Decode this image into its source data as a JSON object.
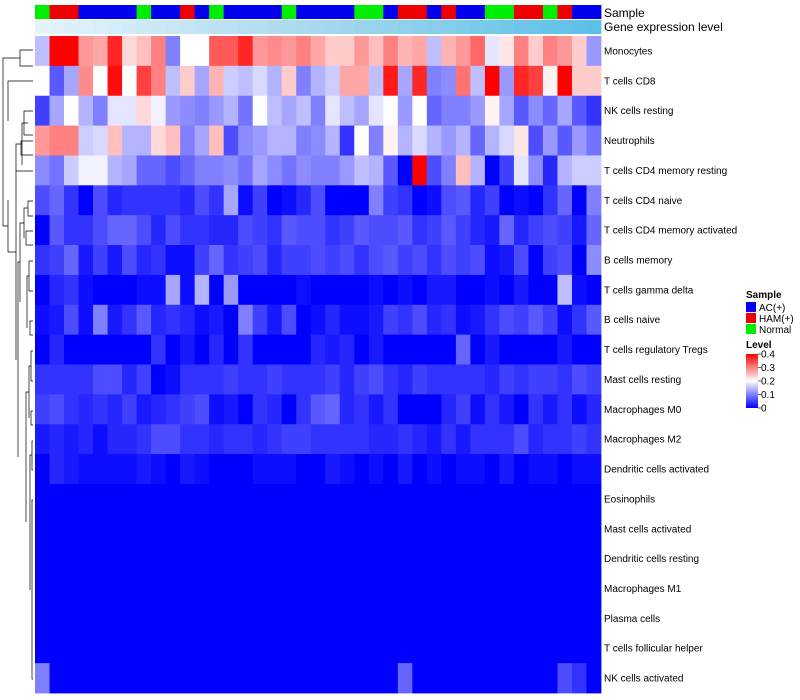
{
  "chart_data": {
    "type": "heatmap",
    "annotation_rows": [
      "Sample",
      "Gene expression level"
    ],
    "rows": [
      "Monocytes",
      "T cells CD8",
      "NK cells resting",
      "Neutrophils",
      "T cells CD4 memory resting",
      "T cells CD4 naive",
      "T cells CD4 memory activated",
      "B cells memory",
      "T cells gamma delta",
      "B cells naive",
      "T cells regulatory  Tregs",
      "Mast cells resting",
      "Macrophages M0",
      "Macrophages M2",
      "Dendritic cells activated",
      "Eosinophils",
      "Mast cells activated",
      "Dendritic cells resting",
      "Macrophages M1",
      "Plasma cells",
      "T cells follicular helper",
      "NK cells activated"
    ],
    "sample_groups": [
      "Normal",
      "HAM(+)",
      "HAM(+)",
      "AC(+)",
      "AC(+)",
      "AC(+)",
      "AC(+)",
      "Normal",
      "AC(+)",
      "AC(+)",
      "HAM(+)",
      "AC(+)",
      "Normal",
      "AC(+)",
      "AC(+)",
      "AC(+)",
      "AC(+)",
      "Normal",
      "AC(+)",
      "AC(+)",
      "AC(+)",
      "AC(+)",
      "Normal",
      "Normal",
      "AC(+)",
      "HAM(+)",
      "HAM(+)",
      "AC(+)",
      "HAM(+)",
      "AC(+)",
      "AC(+)",
      "Normal",
      "Normal",
      "HAM(+)",
      "HAM(+)",
      "Normal",
      "HAM(+)",
      "AC(+)",
      "AC(+)"
    ],
    "values": [
      [
        0.15,
        0.4,
        0.4,
        0.28,
        0.27,
        0.37,
        0.23,
        0.25,
        0.3,
        0.1,
        0.2,
        0.2,
        0.33,
        0.33,
        0.37,
        0.28,
        0.29,
        0.28,
        0.3,
        0.27,
        0.24,
        0.24,
        0.28,
        0.25,
        0.3,
        0.26,
        0.27,
        0.15,
        0.26,
        0.28,
        0.32,
        0.18,
        0.22,
        0.3,
        0.24,
        0.3,
        0.28,
        0.24,
        0.12
      ],
      [
        0.2,
        0.07,
        0.13,
        0.29,
        0.2,
        0.39,
        0.2,
        0.35,
        0.3,
        0.15,
        0.24,
        0.13,
        0.26,
        0.16,
        0.15,
        0.17,
        0.14,
        0.24,
        0.1,
        0.14,
        0.16,
        0.27,
        0.27,
        0.15,
        0.38,
        0.13,
        0.37,
        0.1,
        0.11,
        0.31,
        0.15,
        0.4,
        0.12,
        0.37,
        0.35,
        0.21,
        0.4,
        0.24,
        0.24
      ],
      [
        0.05,
        0.13,
        0.2,
        0.14,
        0.1,
        0.18,
        0.18,
        0.23,
        0.19,
        0.12,
        0.11,
        0.1,
        0.12,
        0.14,
        0.09,
        0.2,
        0.15,
        0.13,
        0.15,
        0.1,
        0.18,
        0.15,
        0.13,
        0.18,
        0.2,
        0.12,
        0.2,
        0.08,
        0.1,
        0.1,
        0.12,
        0.21,
        0.13,
        0.07,
        0.11,
        0.08,
        0.13,
        0.07,
        0.04
      ],
      [
        0.28,
        0.3,
        0.3,
        0.16,
        0.17,
        0.25,
        0.14,
        0.14,
        0.23,
        0.25,
        0.1,
        0.13,
        0.25,
        0.06,
        0.11,
        0.12,
        0.14,
        0.14,
        0.1,
        0.11,
        0.14,
        0.04,
        0.2,
        0.1,
        0.21,
        0.14,
        0.17,
        0.14,
        0.12,
        0.14,
        0.08,
        0.14,
        0.17,
        0.22,
        0.06,
        0.12,
        0.07,
        0.12,
        0.09
      ],
      [
        0.11,
        0.09,
        0.16,
        0.19,
        0.19,
        0.14,
        0.13,
        0.08,
        0.08,
        0.06,
        0.08,
        0.1,
        0.1,
        0.11,
        0.09,
        0.13,
        0.11,
        0.09,
        0.11,
        0.1,
        0.1,
        0.12,
        0.15,
        0.14,
        0.07,
        0.0,
        0.4,
        0.06,
        0.1,
        0.25,
        0.14,
        0.0,
        0.05,
        0.18,
        0.11,
        0.03,
        0.14,
        0.16,
        0.16
      ],
      [
        0.06,
        0.08,
        0.04,
        0.0,
        0.06,
        0.03,
        0.04,
        0.04,
        0.04,
        0.04,
        0.03,
        0.06,
        0.04,
        0.13,
        0.01,
        0.05,
        0.0,
        0.01,
        0.03,
        0.06,
        0.0,
        0.0,
        0.0,
        0.1,
        0.05,
        0.04,
        0.0,
        0.01,
        0.06,
        0.07,
        0.03,
        0.05,
        0.0,
        0.01,
        0.0,
        0.04,
        0.08,
        0.0,
        0.1
      ],
      [
        0.0,
        0.07,
        0.04,
        0.04,
        0.06,
        0.08,
        0.08,
        0.06,
        0.03,
        0.06,
        0.04,
        0.04,
        0.03,
        0.03,
        0.06,
        0.05,
        0.04,
        0.07,
        0.06,
        0.06,
        0.04,
        0.05,
        0.07,
        0.06,
        0.06,
        0.07,
        0.04,
        0.05,
        0.07,
        0.05,
        0.03,
        0.02,
        0.08,
        0.03,
        0.05,
        0.06,
        0.05,
        0.02,
        0.08
      ],
      [
        0.04,
        0.05,
        0.08,
        0.02,
        0.05,
        0.02,
        0.06,
        0.03,
        0.04,
        0.01,
        0.01,
        0.05,
        0.08,
        0.04,
        0.05,
        0.06,
        0.03,
        0.05,
        0.05,
        0.06,
        0.05,
        0.06,
        0.04,
        0.06,
        0.07,
        0.05,
        0.06,
        0.04,
        0.06,
        0.05,
        0.06,
        0.01,
        0.02,
        0.06,
        0.0,
        0.05,
        0.06,
        0.0,
        0.11
      ],
      [
        0.0,
        0.03,
        0.04,
        0.01,
        0.0,
        0.0,
        0.0,
        0.01,
        0.01,
        0.13,
        0.01,
        0.14,
        0.0,
        0.12,
        0.0,
        0.0,
        0.0,
        0.0,
        0.01,
        0.0,
        0.0,
        0.0,
        0.0,
        0.01,
        0.0,
        0.01,
        0.0,
        0.02,
        0.02,
        0.0,
        0.0,
        0.01,
        0.0,
        0.02,
        0.0,
        0.0,
        0.15,
        0.01,
        0.0
      ],
      [
        0.01,
        0.02,
        0.06,
        0.01,
        0.1,
        0.02,
        0.04,
        0.07,
        0.03,
        0.04,
        0.03,
        0.01,
        0.02,
        0.0,
        0.1,
        0.05,
        0.02,
        0.06,
        0.0,
        0.01,
        0.03,
        0.01,
        0.01,
        0.02,
        0.05,
        0.04,
        0.06,
        0.03,
        0.04,
        0.01,
        0.02,
        0.04,
        0.06,
        0.05,
        0.07,
        0.05,
        0.01,
        0.04,
        0.07
      ],
      [
        0.0,
        0.03,
        0.0,
        0.0,
        0.0,
        0.0,
        0.0,
        0.0,
        0.04,
        0.0,
        0.02,
        0.0,
        0.03,
        0.0,
        0.04,
        0.0,
        0.0,
        0.0,
        0.0,
        0.03,
        0.02,
        0.03,
        0.0,
        0.02,
        0.0,
        0.0,
        0.0,
        0.0,
        0.0,
        0.08,
        0.0,
        0.02,
        0.0,
        0.0,
        0.0,
        0.0,
        0.02,
        0.0,
        0.0
      ],
      [
        0.04,
        0.04,
        0.04,
        0.04,
        0.06,
        0.06,
        0.03,
        0.05,
        0.0,
        0.01,
        0.04,
        0.04,
        0.04,
        0.05,
        0.04,
        0.04,
        0.05,
        0.04,
        0.04,
        0.04,
        0.05,
        0.03,
        0.05,
        0.06,
        0.04,
        0.03,
        0.05,
        0.04,
        0.04,
        0.04,
        0.04,
        0.03,
        0.05,
        0.04,
        0.05,
        0.05,
        0.04,
        0.06,
        0.05
      ],
      [
        0.05,
        0.06,
        0.04,
        0.03,
        0.04,
        0.03,
        0.05,
        0.02,
        0.03,
        0.04,
        0.05,
        0.06,
        0.01,
        0.02,
        0.0,
        0.04,
        0.03,
        0.0,
        0.04,
        0.07,
        0.08,
        0.03,
        0.04,
        0.02,
        0.04,
        0.0,
        0.0,
        0.0,
        0.03,
        0.05,
        0.01,
        0.04,
        0.02,
        0.0,
        0.04,
        0.02,
        0.04,
        0.01,
        0.03
      ],
      [
        0.02,
        0.03,
        0.02,
        0.03,
        0.01,
        0.03,
        0.03,
        0.04,
        0.06,
        0.06,
        0.04,
        0.04,
        0.03,
        0.04,
        0.04,
        0.03,
        0.04,
        0.05,
        0.05,
        0.04,
        0.04,
        0.04,
        0.04,
        0.03,
        0.03,
        0.04,
        0.03,
        0.02,
        0.04,
        0.02,
        0.04,
        0.04,
        0.04,
        0.06,
        0.03,
        0.04,
        0.04,
        0.05,
        0.04
      ],
      [
        0.0,
        0.03,
        0.02,
        0.01,
        0.01,
        0.01,
        0.01,
        0.02,
        0.01,
        0.0,
        0.02,
        0.01,
        0.0,
        0.0,
        0.0,
        0.01,
        0.01,
        0.01,
        0.0,
        0.0,
        0.02,
        0.01,
        0.0,
        0.01,
        0.0,
        0.02,
        0.0,
        0.01,
        0.0,
        0.01,
        0.01,
        0.0,
        0.02,
        0.0,
        0.01,
        0.01,
        0.0,
        0.01,
        0.01
      ],
      [
        0,
        0,
        0,
        0,
        0,
        0,
        0,
        0,
        0,
        0,
        0,
        0,
        0,
        0,
        0,
        0,
        0,
        0,
        0,
        0,
        0,
        0,
        0,
        0,
        0,
        0,
        0,
        0,
        0,
        0,
        0,
        0,
        0,
        0,
        0,
        0,
        0,
        0,
        0
      ],
      [
        0,
        0,
        0,
        0,
        0,
        0,
        0,
        0,
        0,
        0,
        0,
        0,
        0,
        0,
        0,
        0,
        0,
        0,
        0,
        0,
        0,
        0,
        0,
        0,
        0,
        0,
        0,
        0,
        0,
        0,
        0,
        0,
        0,
        0,
        0,
        0,
        0,
        0,
        0
      ],
      [
        0,
        0,
        0,
        0,
        0,
        0,
        0,
        0,
        0,
        0,
        0,
        0,
        0,
        0,
        0,
        0,
        0,
        0,
        0,
        0,
        0,
        0,
        0,
        0,
        0,
        0,
        0,
        0,
        0,
        0,
        0,
        0,
        0,
        0,
        0,
        0,
        0,
        0,
        0
      ],
      [
        0,
        0,
        0,
        0,
        0,
        0,
        0,
        0,
        0,
        0,
        0,
        0,
        0,
        0,
        0,
        0,
        0,
        0,
        0,
        0,
        0,
        0,
        0,
        0,
        0,
        0,
        0,
        0,
        0,
        0,
        0,
        0,
        0,
        0,
        0,
        0,
        0,
        0,
        0
      ],
      [
        0,
        0,
        0,
        0,
        0,
        0,
        0,
        0,
        0,
        0,
        0,
        0,
        0,
        0,
        0,
        0,
        0,
        0,
        0,
        0,
        0,
        0,
        0,
        0,
        0,
        0,
        0,
        0,
        0,
        0,
        0,
        0,
        0,
        0,
        0,
        0,
        0,
        0,
        0
      ],
      [
        0,
        0,
        0,
        0,
        0,
        0,
        0,
        0,
        0,
        0,
        0,
        0,
        0,
        0,
        0,
        0,
        0,
        0,
        0,
        0,
        0,
        0,
        0,
        0,
        0,
        0,
        0,
        0,
        0,
        0,
        0,
        0,
        0,
        0,
        0,
        0,
        0,
        0,
        0
      ],
      [
        0.1,
        0,
        0,
        0,
        0,
        0,
        0,
        0,
        0,
        0,
        0,
        0,
        0,
        0,
        0,
        0,
        0,
        0,
        0,
        0,
        0,
        0,
        0,
        0,
        0,
        0.08,
        0,
        0,
        0,
        0,
        0,
        0,
        0,
        0,
        0,
        0,
        0.06,
        0.04,
        0
      ]
    ],
    "legend_sample": {
      "title": "Sample",
      "items": [
        {
          "label": "AC(+)",
          "color": "#0000ee"
        },
        {
          "label": "HAM(+)",
          "color": "#ee0000"
        },
        {
          "label": "Normal",
          "color": "#00ee00"
        }
      ]
    },
    "legend_level": {
      "title": "Level",
      "ticks": [
        "0.4",
        "0.3",
        "0.2",
        "0.1",
        "0"
      ],
      "range": [
        0,
        0.4
      ]
    },
    "color_scale": {
      "low": "#0000ff",
      "mid": "#ffffff",
      "high": "#ff0000",
      "mid_value": 0.2
    },
    "expression_bar_colors": [
      "#e4f4fb",
      "#a8d8ee",
      "#5bc0e8"
    ]
  }
}
